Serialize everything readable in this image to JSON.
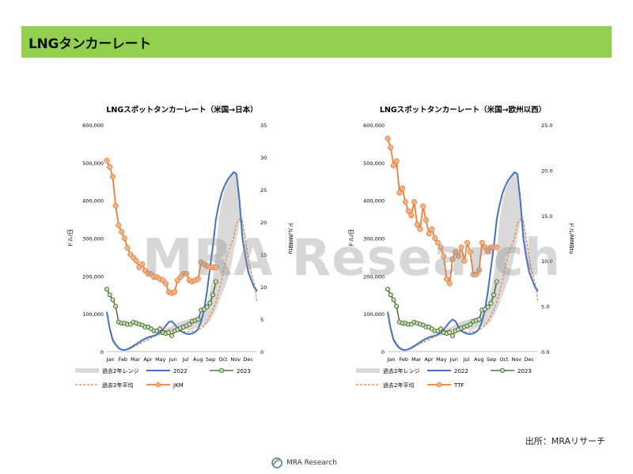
{
  "page": {
    "title": "LNGタンカーレート",
    "watermark": "MRA Research",
    "source": "出所：MRAリサーチ",
    "footer_logo": "MRA Research"
  },
  "chart_data": [
    {
      "type": "line",
      "title": "LNGスポットタンカーレート（米国→日本）",
      "ylabel": "ドル/日",
      "y2label": "ドル/MMBtu",
      "ylim": [
        0,
        600000
      ],
      "y2lim": [
        0,
        35
      ],
      "yticks": [
        "0",
        "100,000",
        "200,000",
        "300,000",
        "400,000",
        "500,000",
        "600,000"
      ],
      "y2ticks": [
        "0",
        "5",
        "10",
        "15",
        "20",
        "25",
        "30",
        "35"
      ],
      "xlim": [
        0,
        51
      ],
      "months": [
        "Jan",
        "Feb",
        "Mar",
        "Apr",
        "May",
        "Jun",
        "Jul",
        "Aug",
        "Sep",
        "Oct",
        "Nov",
        "Dec"
      ],
      "legend": [
        "過去2年レンジ",
        "2022",
        "2023",
        "過去2年平均",
        "JKM"
      ],
      "colors": {
        "range": "#d9d9d9",
        "y2022": "#4472c4",
        "y2023": "#375623",
        "avg": "#ed7d31",
        "jkm": "#ed7d31",
        "jkm_fill": "#f4b183",
        "y2023_fill": "#c5e0b4"
      },
      "range_x": [
        0,
        1,
        2,
        3,
        4,
        5,
        6,
        7,
        8,
        9,
        10,
        11,
        12,
        13,
        14,
        15,
        16,
        17,
        18,
        19,
        20,
        21,
        22,
        23,
        24,
        25,
        26,
        27,
        28,
        29,
        30,
        31,
        32,
        33,
        34,
        35,
        36,
        37,
        38,
        39,
        40,
        41,
        42,
        43,
        44,
        45,
        46,
        47,
        48,
        49,
        50,
        51
      ],
      "range_low": [
        100000,
        60000,
        30000,
        18000,
        10000,
        5000,
        3000,
        4000,
        6000,
        10000,
        15000,
        20000,
        25000,
        30000,
        33000,
        36000,
        38000,
        40000,
        42000,
        45000,
        48000,
        50000,
        52000,
        54000,
        55000,
        56000,
        58000,
        60000,
        55000,
        58000,
        62000,
        64000,
        66000,
        68000,
        72000,
        80000,
        95000,
        110000,
        130000,
        150000,
        170000,
        190000,
        220000,
        260000,
        300000,
        340000,
        360000,
        300000,
        240000,
        210000,
        180000,
        150000
      ],
      "range_high": [
        110000,
        70000,
        38000,
        25000,
        15000,
        8000,
        5000,
        6000,
        8000,
        12000,
        17000,
        22000,
        28000,
        32000,
        36000,
        40000,
        44000,
        48000,
        52000,
        56000,
        60000,
        64000,
        68000,
        72000,
        76000,
        80000,
        82000,
        84000,
        86000,
        88000,
        90000,
        95000,
        100000,
        110000,
        130000,
        160000,
        200000,
        260000,
        350000,
        400000,
        430000,
        450000,
        460000,
        475000,
        470000,
        420000,
        320000,
        260000,
        220000,
        200000,
        180000,
        165000
      ],
      "y2022_x": [
        0,
        1,
        2,
        3,
        4,
        5,
        6,
        7,
        8,
        9,
        10,
        11,
        12,
        13,
        14,
        15,
        16,
        17,
        18,
        19,
        20,
        21,
        22,
        23,
        24,
        25,
        26,
        27,
        28,
        29,
        30,
        31,
        32,
        33,
        34,
        35,
        36,
        37,
        38,
        39,
        40,
        41,
        42,
        43,
        44,
        45,
        46,
        47,
        48,
        49,
        50,
        51
      ],
      "y2022_values": [
        105000,
        60000,
        30000,
        18000,
        9000,
        5000,
        4000,
        6000,
        10000,
        15000,
        20000,
        25000,
        30000,
        34000,
        38000,
        40000,
        42000,
        45000,
        50000,
        58000,
        68000,
        78000,
        80000,
        72000,
        62000,
        55000,
        50000,
        47000,
        46000,
        48000,
        52000,
        60000,
        80000,
        110000,
        160000,
        220000,
        280000,
        350000,
        390000,
        420000,
        440000,
        455000,
        465000,
        475000,
        470000,
        400000,
        300000,
        250000,
        210000,
        190000,
        170000,
        160000
      ],
      "avg_values": [
        100000,
        65000,
        35000,
        20000,
        10000,
        6000,
        4000,
        5000,
        8000,
        12000,
        16000,
        20000,
        24000,
        28000,
        32000,
        36000,
        40000,
        44000,
        48000,
        52000,
        56000,
        58000,
        58000,
        56000,
        54000,
        53000,
        52000,
        52000,
        52000,
        53000,
        55000,
        58000,
        62000,
        68000,
        80000,
        95000,
        110000,
        130000,
        160000,
        190000,
        230000,
        260000,
        280000,
        300000,
        340000,
        350000,
        345000,
        300000,
        250000,
        210000,
        180000,
        130000
      ],
      "y2023_x": [
        0,
        1,
        2,
        3,
        4,
        5,
        6,
        7,
        8,
        9,
        10,
        11,
        12,
        13,
        14,
        15,
        16,
        17,
        18,
        19,
        20,
        21,
        22,
        23,
        24,
        25,
        26,
        27,
        28,
        29,
        30,
        31,
        32,
        33,
        34,
        35,
        36,
        37
      ],
      "y2023_values": [
        165000,
        150000,
        137000,
        120000,
        78000,
        75000,
        75000,
        72000,
        72000,
        78000,
        75000,
        72000,
        70000,
        65000,
        65000,
        60000,
        55000,
        55000,
        60000,
        50000,
        48000,
        50000,
        42000,
        55000,
        58000,
        62000,
        65000,
        68000,
        72000,
        80000,
        82000,
        85000,
        110000,
        112000,
        118000,
        128000,
        150000,
        185000
      ],
      "jkm_x": [
        0,
        1,
        2,
        3,
        4,
        5,
        6,
        7,
        8,
        9,
        10,
        11,
        12,
        13,
        14,
        15,
        16,
        17,
        18,
        19,
        20,
        21,
        22,
        23,
        24,
        25,
        26,
        27,
        28,
        29,
        30,
        31,
        32,
        33,
        34,
        35,
        36,
        37
      ],
      "jkm_values": [
        29.5,
        28.5,
        27,
        22.5,
        19.5,
        18.5,
        17.5,
        16,
        15,
        14.5,
        14,
        13,
        13.5,
        12.5,
        12,
        12,
        11.5,
        11.5,
        11.2,
        11,
        10.5,
        9.2,
        9,
        9.2,
        11,
        11.5,
        12,
        12,
        11,
        10.8,
        11,
        11.2,
        13.8,
        13.5,
        13.2,
        13,
        13,
        13
      ]
    },
    {
      "type": "line",
      "title": "LNGスポットタンカーレート（米国→欧州以西）",
      "ylabel": "ドル/日",
      "y2label": "ドル/MMBtu",
      "ylim": [
        0,
        600000
      ],
      "y2lim": [
        0,
        25
      ],
      "yticks": [
        "0",
        "100,000",
        "200,000",
        "300,000",
        "400,000",
        "500,000",
        "600,000"
      ],
      "y2ticks": [
        "0.0",
        "5.0",
        "10.0",
        "15.0",
        "20.0",
        "25.0"
      ],
      "xlim": [
        0,
        51
      ],
      "months": [
        "Jan",
        "Feb",
        "Mar",
        "Apr",
        "May",
        "Jun",
        "Jul",
        "Aug",
        "Sep",
        "Oct",
        "Nov",
        "Dec"
      ],
      "legend": [
        "過去2年レンジ",
        "2022",
        "2023",
        "過去2年平均",
        "TTF"
      ],
      "colors": {
        "range": "#d9d9d9",
        "y2022": "#4472c4",
        "y2023": "#375623",
        "avg": "#ed7d31",
        "jkm": "#ed7d31",
        "jkm_fill": "#f4b183",
        "y2023_fill": "#c5e0b4"
      },
      "range_x": [
        0,
        1,
        2,
        3,
        4,
        5,
        6,
        7,
        8,
        9,
        10,
        11,
        12,
        13,
        14,
        15,
        16,
        17,
        18,
        19,
        20,
        21,
        22,
        23,
        24,
        25,
        26,
        27,
        28,
        29,
        30,
        31,
        32,
        33,
        34,
        35,
        36,
        37,
        38,
        39,
        40,
        41,
        42,
        43,
        44,
        45,
        46,
        47,
        48,
        49,
        50,
        51
      ],
      "range_low": [
        100000,
        60000,
        30000,
        18000,
        10000,
        5000,
        3000,
        4000,
        6000,
        10000,
        15000,
        20000,
        25000,
        30000,
        33000,
        36000,
        38000,
        40000,
        42000,
        45000,
        48000,
        50000,
        52000,
        54000,
        55000,
        56000,
        58000,
        60000,
        55000,
        58000,
        62000,
        64000,
        66000,
        68000,
        72000,
        80000,
        95000,
        110000,
        130000,
        150000,
        170000,
        190000,
        220000,
        260000,
        300000,
        340000,
        360000,
        300000,
        240000,
        210000,
        180000,
        150000
      ],
      "range_high": [
        110000,
        70000,
        38000,
        25000,
        15000,
        8000,
        5000,
        6000,
        8000,
        12000,
        17000,
        22000,
        28000,
        32000,
        36000,
        40000,
        44000,
        48000,
        52000,
        56000,
        60000,
        64000,
        68000,
        72000,
        76000,
        80000,
        82000,
        84000,
        86000,
        88000,
        90000,
        95000,
        100000,
        110000,
        130000,
        160000,
        200000,
        260000,
        350000,
        400000,
        430000,
        450000,
        460000,
        475000,
        470000,
        420000,
        320000,
        260000,
        220000,
        200000,
        180000,
        165000
      ],
      "y2022_x": [
        0,
        1,
        2,
        3,
        4,
        5,
        6,
        7,
        8,
        9,
        10,
        11,
        12,
        13,
        14,
        15,
        16,
        17,
        18,
        19,
        20,
        21,
        22,
        23,
        24,
        25,
        26,
        27,
        28,
        29,
        30,
        31,
        32,
        33,
        34,
        35,
        36,
        37,
        38,
        39,
        40,
        41,
        42,
        43,
        44,
        45,
        46,
        47,
        48,
        49,
        50,
        51
      ],
      "y2022_values": [
        105000,
        60000,
        30000,
        18000,
        9000,
        5000,
        4000,
        6000,
        10000,
        15000,
        20000,
        25000,
        30000,
        34000,
        38000,
        40000,
        42000,
        45000,
        50000,
        58000,
        68000,
        78000,
        85000,
        80000,
        65000,
        55000,
        50000,
        47000,
        46000,
        48000,
        52000,
        60000,
        80000,
        110000,
        160000,
        220000,
        280000,
        350000,
        390000,
        420000,
        440000,
        455000,
        465000,
        475000,
        470000,
        400000,
        300000,
        250000,
        210000,
        190000,
        170000,
        160000
      ],
      "avg_values": [
        100000,
        65000,
        35000,
        20000,
        10000,
        6000,
        4000,
        5000,
        8000,
        12000,
        16000,
        20000,
        24000,
        28000,
        32000,
        36000,
        40000,
        44000,
        48000,
        52000,
        56000,
        58000,
        58000,
        56000,
        54000,
        53000,
        52000,
        52000,
        52000,
        53000,
        55000,
        58000,
        62000,
        68000,
        80000,
        95000,
        110000,
        130000,
        160000,
        190000,
        230000,
        260000,
        280000,
        300000,
        340000,
        350000,
        345000,
        300000,
        250000,
        210000,
        180000,
        130000
      ],
      "y2023_x": [
        0,
        1,
        2,
        3,
        4,
        5,
        6,
        7,
        8,
        9,
        10,
        11,
        12,
        13,
        14,
        15,
        16,
        17,
        18,
        19,
        20,
        21,
        22,
        23,
        24,
        25,
        26,
        27,
        28,
        29,
        30,
        31,
        32,
        33,
        34,
        35,
        36,
        37
      ],
      "y2023_values": [
        165000,
        150000,
        137000,
        120000,
        78000,
        75000,
        75000,
        72000,
        72000,
        78000,
        75000,
        72000,
        70000,
        65000,
        65000,
        60000,
        55000,
        55000,
        60000,
        50000,
        48000,
        50000,
        42000,
        55000,
        58000,
        62000,
        65000,
        68000,
        72000,
        80000,
        82000,
        85000,
        110000,
        112000,
        118000,
        128000,
        150000,
        185000
      ],
      "jkm_x": [
        0,
        1,
        2,
        3,
        4,
        5,
        6,
        7,
        8,
        9,
        10,
        11,
        12,
        13,
        14,
        15,
        16,
        17,
        18,
        19,
        20,
        21,
        22,
        23,
        24,
        25,
        26,
        27,
        28,
        29,
        30,
        31,
        32,
        33,
        34,
        35,
        36,
        37
      ],
      "jkm_values": [
        23.5,
        22.5,
        20.5,
        21,
        17.5,
        18,
        16.5,
        15.5,
        15,
        16.5,
        14,
        13.5,
        16,
        14.5,
        13,
        13.5,
        12.5,
        12,
        11.5,
        10.5,
        8,
        7.5,
        10.2,
        11,
        10.5,
        11.5,
        10,
        12,
        11,
        8.5,
        8.5,
        9,
        12,
        11.5,
        11,
        11.5,
        11.5,
        11.5
      ]
    }
  ]
}
